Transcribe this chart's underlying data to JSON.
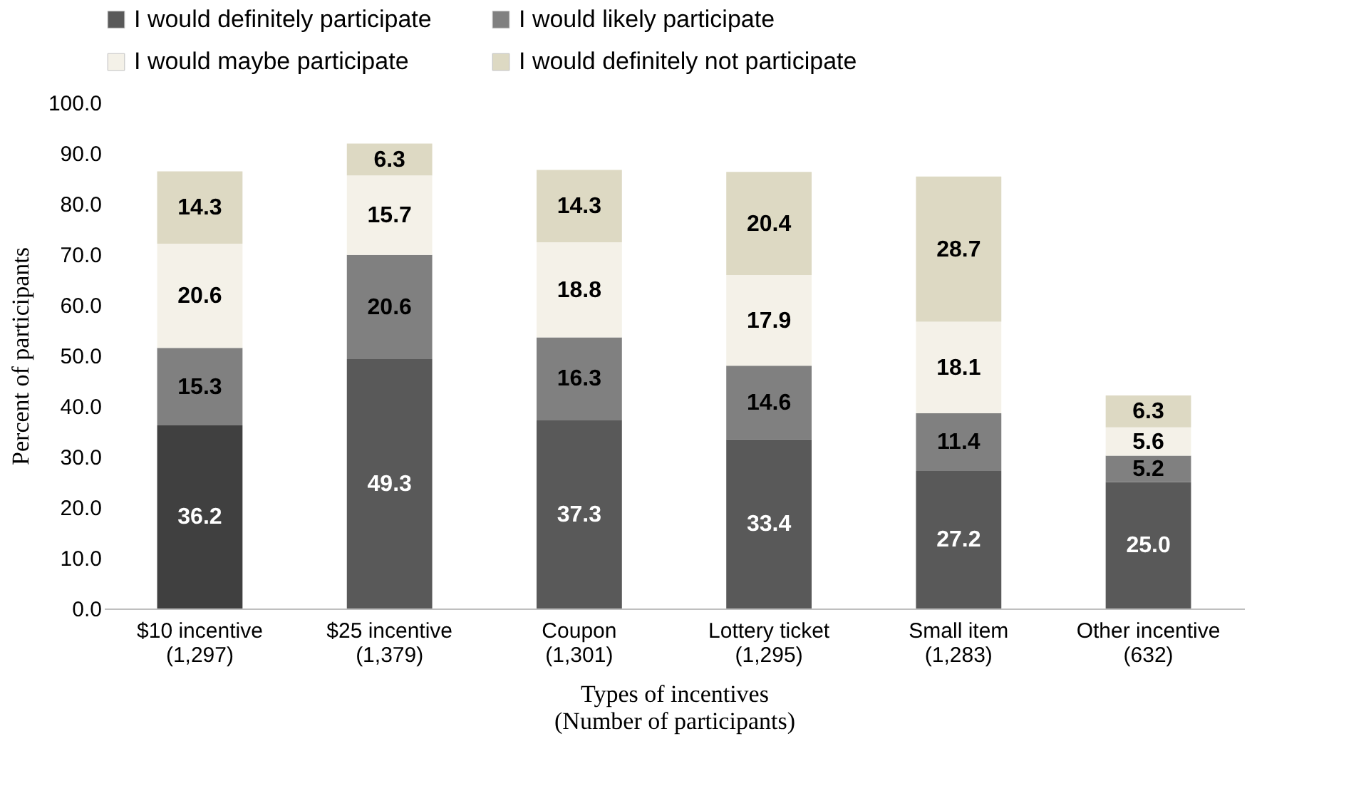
{
  "chart_data": {
    "type": "bar",
    "stacked": true,
    "data_labels": true,
    "legend": "top",
    "grid": false,
    "xlabel": "Types of incentives\n(Number of participants)",
    "ylabel": "Percent of participants",
    "categories": [
      "$10 incentive\n(1,297)",
      "$25 incentive\n(1,379)",
      "Coupon\n(1,301)",
      "Lottery ticket\n(1,295)",
      "Small item\n(1,283)",
      "Other incentive\n(632)"
    ],
    "series": [
      {
        "name": "I would definitely participate",
        "color": "#595959",
        "colors": [
          "#404040",
          "#595959",
          "#595959",
          "#595959",
          "#595959",
          "#595959"
        ],
        "values": [
          36.2,
          49.3,
          37.3,
          33.4,
          27.2,
          25.0
        ],
        "value_labels": [
          "36.2",
          "49.3",
          "37.3",
          "33.4",
          "27.2",
          "25.0"
        ]
      },
      {
        "name": "I would likely participate",
        "color": "#808080",
        "values": [
          15.3,
          20.6,
          16.3,
          14.6,
          11.4,
          5.2
        ],
        "value_labels": [
          "15.3",
          "20.6",
          "16.3",
          "14.6",
          "11.4",
          "5.2"
        ]
      },
      {
        "name": "I would maybe participate",
        "color": "#f4f1e8",
        "values": [
          20.6,
          15.7,
          18.8,
          17.9,
          18.1,
          5.6
        ],
        "value_labels": [
          "20.6",
          "15.7",
          "18.8",
          "17.9",
          "18.1",
          "5.6"
        ]
      },
      {
        "name": "I would definitely not participate",
        "color": "#ddd9c3",
        "values": [
          14.3,
          6.3,
          14.3,
          20.4,
          28.7,
          6.3
        ],
        "value_labels": [
          "14.3",
          "6.3",
          "14.3",
          "20.4",
          "28.7",
          "6.3"
        ]
      }
    ],
    "ylim": [
      0,
      100
    ],
    "yticks": [
      {
        "value": 0,
        "label": "0.0"
      },
      {
        "value": 10,
        "label": "10.0"
      },
      {
        "value": 20,
        "label": "20.0"
      },
      {
        "value": 30,
        "label": "30.0"
      },
      {
        "value": 40,
        "label": "40.0"
      },
      {
        "value": 50,
        "label": "50.0"
      },
      {
        "value": 60,
        "label": "60.0"
      },
      {
        "value": 70,
        "label": "70.0"
      },
      {
        "value": 80,
        "label": "80.0"
      },
      {
        "value": 90,
        "label": "90.0"
      },
      {
        "value": 100,
        "label": "100.0"
      }
    ]
  }
}
